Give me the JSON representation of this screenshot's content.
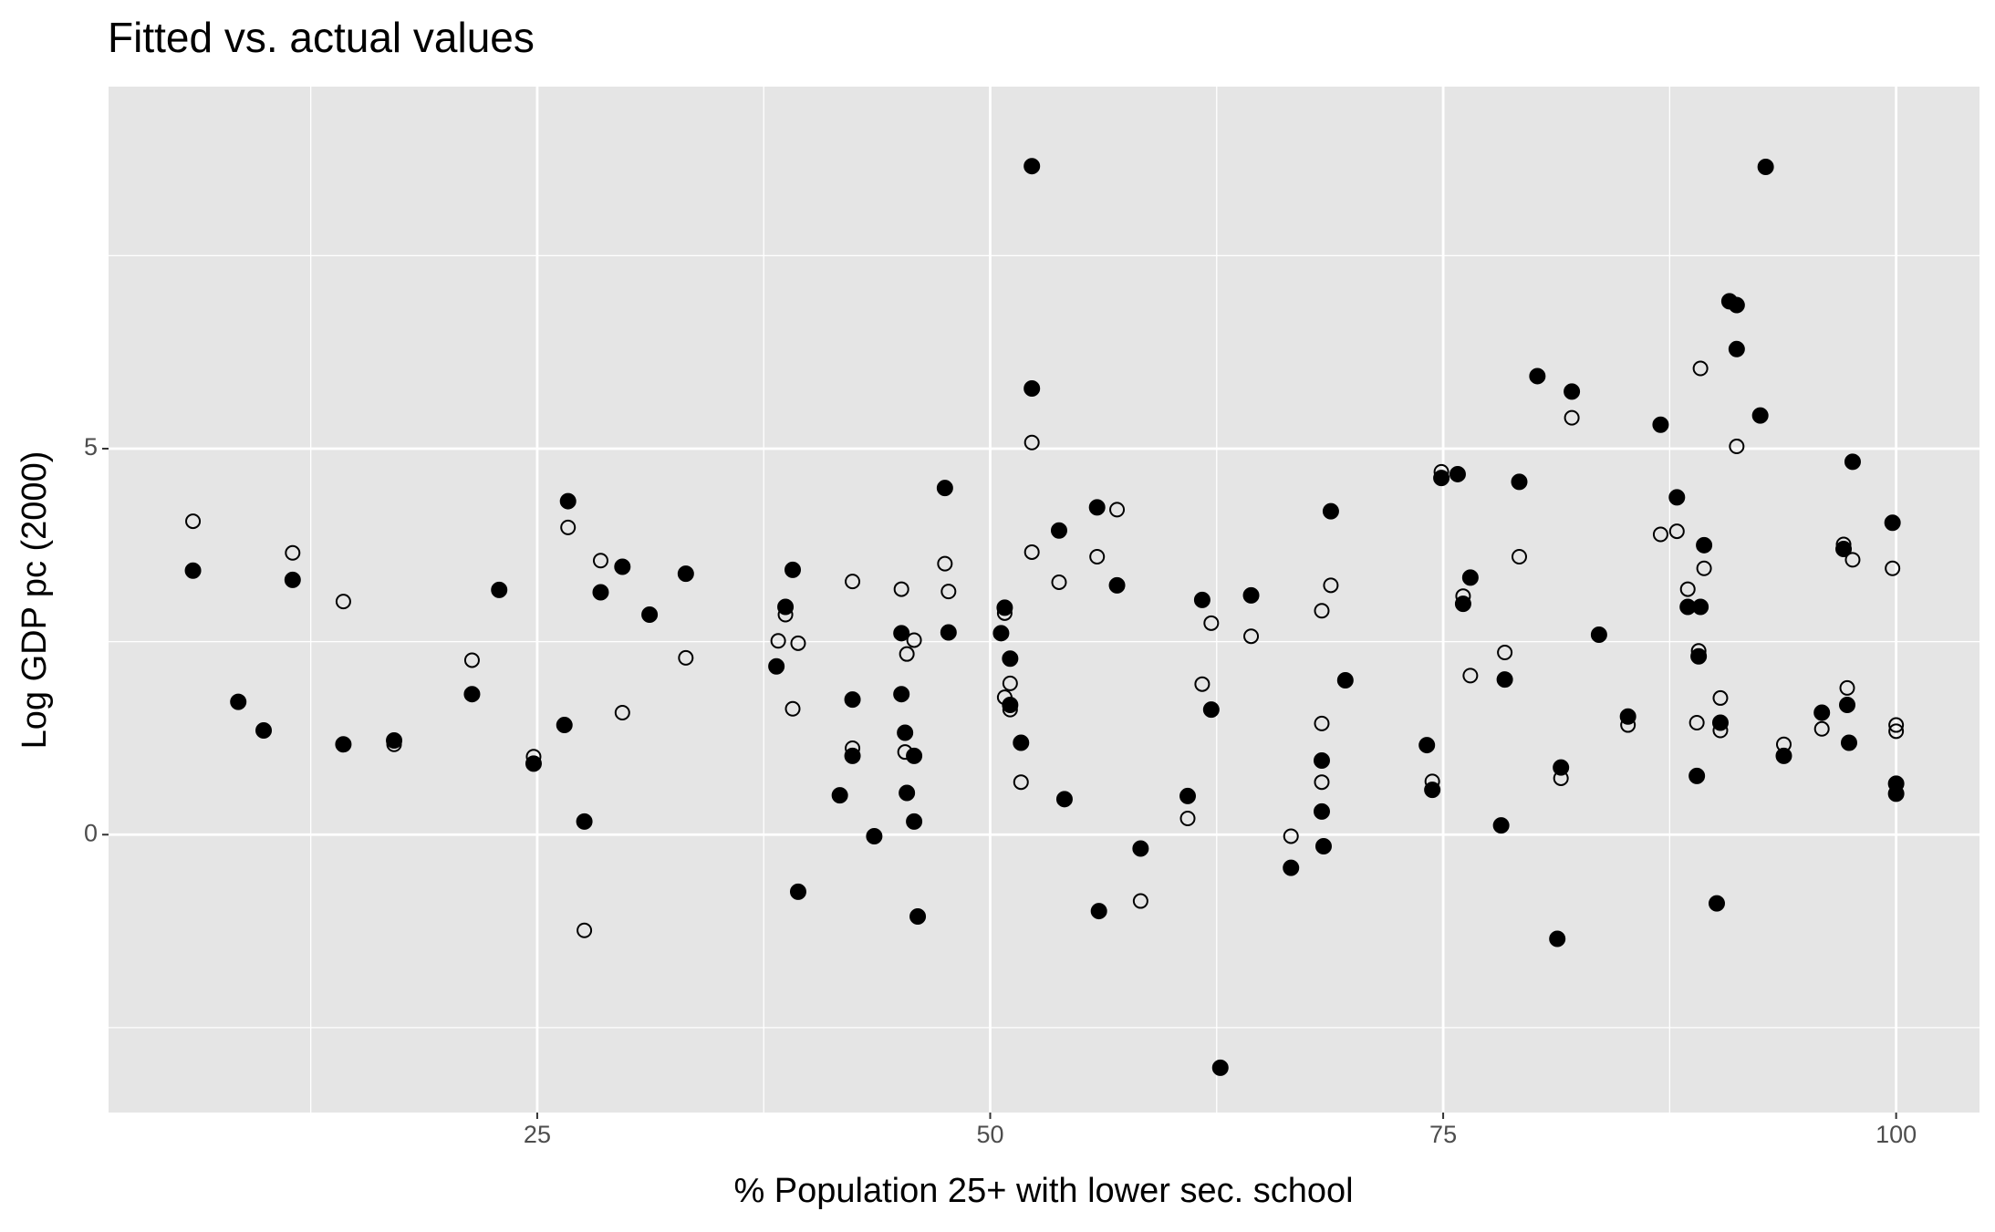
{
  "chart_data": {
    "type": "scatter",
    "title": "Fitted vs. actual values",
    "x_label": "% Population 25+ with lower sec. school",
    "y_label": "Log GDP pc (2000)",
    "xlim": [
      1.34,
      104.6
    ],
    "ylim": [
      -3.6,
      9.69
    ],
    "xticks": [
      25,
      50,
      75,
      100
    ],
    "yticks": [
      0,
      5
    ],
    "grid": true,
    "minor_grid": true,
    "background": "#e5e5e5",
    "grid_color": "#ffffff",
    "series": [
      {
        "marker": "filled",
        "color": "#000000",
        "x": [
          6.0,
          8.5,
          9.9,
          11.5,
          14.3,
          17.1,
          21.4,
          22.9,
          24.8,
          26.5,
          26.7,
          27.6,
          28.5,
          29.7,
          31.2,
          33.2,
          38.2,
          38.7,
          39.1,
          39.4,
          41.7,
          42.4,
          42.4,
          43.6,
          45.1,
          45.1,
          45.3,
          45.4,
          45.8,
          45.8,
          46.0,
          47.5,
          47.7,
          50.6,
          50.8,
          51.1,
          51.1,
          51.7,
          52.3,
          52.3,
          53.8,
          54.1,
          55.9,
          56.0,
          57.0,
          58.3,
          60.9,
          61.7,
          62.2,
          62.7,
          64.4,
          66.6,
          68.3,
          68.3,
          68.4,
          68.8,
          69.6,
          74.1,
          74.4,
          74.9,
          75.8,
          76.1,
          76.5,
          78.2,
          78.4,
          79.2,
          80.2,
          81.5,
          81.3,
          82.1,
          83.6,
          85.2,
          87.0,
          87.9,
          88.5,
          89.0,
          89.1,
          89.2,
          89.4,
          90.1,
          90.3,
          90.8,
          91.2,
          91.2,
          92.5,
          92.8,
          93.8,
          95.9,
          97.1,
          97.3,
          97.4,
          97.6,
          99.8,
          100.0,
          100.0
        ],
        "values": [
          3.42,
          1.72,
          1.35,
          3.3,
          1.17,
          1.22,
          1.82,
          3.17,
          0.92,
          1.42,
          4.32,
          0.17,
          3.14,
          3.47,
          2.85,
          3.38,
          2.18,
          2.95,
          3.43,
          -0.74,
          0.51,
          1.75,
          1.02,
          -0.02,
          1.82,
          2.61,
          1.32,
          0.54,
          1.02,
          0.17,
          -1.06,
          4.49,
          2.62,
          2.61,
          2.94,
          2.28,
          1.68,
          1.19,
          8.66,
          5.78,
          3.94,
          0.46,
          4.24,
          -0.99,
          3.23,
          -0.18,
          0.5,
          3.04,
          1.62,
          -3.02,
          3.1,
          -0.43,
          0.96,
          0.3,
          -0.15,
          4.19,
          2.0,
          1.16,
          0.58,
          4.62,
          4.67,
          2.99,
          3.33,
          0.12,
          2.01,
          4.57,
          5.94,
          0.87,
          -1.35,
          5.74,
          2.59,
          1.53,
          5.31,
          4.37,
          2.95,
          0.76,
          2.31,
          2.95,
          3.75,
          -0.89,
          1.45,
          6.91,
          6.86,
          6.29,
          5.43,
          8.65,
          1.02,
          1.58,
          3.7,
          1.68,
          1.19,
          4.83,
          4.04,
          0.66,
          0.53
        ]
      },
      {
        "marker": "open",
        "color": "#000000",
        "x": [
          6.0,
          11.5,
          14.3,
          17.1,
          21.4,
          24.8,
          26.7,
          27.6,
          28.5,
          29.7,
          33.2,
          38.3,
          38.7,
          39.1,
          39.4,
          42.4,
          42.4,
          45.1,
          45.4,
          45.3,
          45.8,
          47.5,
          47.7,
          50.8,
          50.8,
          51.1,
          51.1,
          51.7,
          52.3,
          52.3,
          53.8,
          55.9,
          57.0,
          58.3,
          60.9,
          61.7,
          62.2,
          64.4,
          66.6,
          68.3,
          68.3,
          68.3,
          68.8,
          74.4,
          74.9,
          76.1,
          76.5,
          78.4,
          79.2,
          81.5,
          82.1,
          85.2,
          87.0,
          87.9,
          88.5,
          89.0,
          89.1,
          89.2,
          89.4,
          90.3,
          90.3,
          91.2,
          93.8,
          95.9,
          97.1,
          97.3,
          97.6,
          99.8,
          100.0,
          100.0
        ],
        "values": [
          4.06,
          3.65,
          3.02,
          1.17,
          2.26,
          1.01,
          3.98,
          -1.24,
          3.55,
          1.58,
          2.29,
          2.51,
          2.85,
          1.63,
          2.48,
          3.28,
          1.12,
          3.18,
          2.34,
          1.07,
          2.52,
          3.51,
          3.15,
          2.87,
          1.78,
          1.96,
          1.62,
          0.68,
          5.08,
          3.66,
          3.27,
          3.6,
          4.21,
          -0.86,
          0.21,
          1.95,
          2.74,
          2.57,
          -0.02,
          1.44,
          2.9,
          0.68,
          3.23,
          0.69,
          4.7,
          3.09,
          2.06,
          2.36,
          3.6,
          0.73,
          5.4,
          1.42,
          3.89,
          3.93,
          3.18,
          1.45,
          2.38,
          6.04,
          3.45,
          1.35,
          1.77,
          5.03,
          1.17,
          1.37,
          3.76,
          1.9,
          3.56,
          3.45,
          1.42,
          1.34
        ]
      }
    ]
  }
}
